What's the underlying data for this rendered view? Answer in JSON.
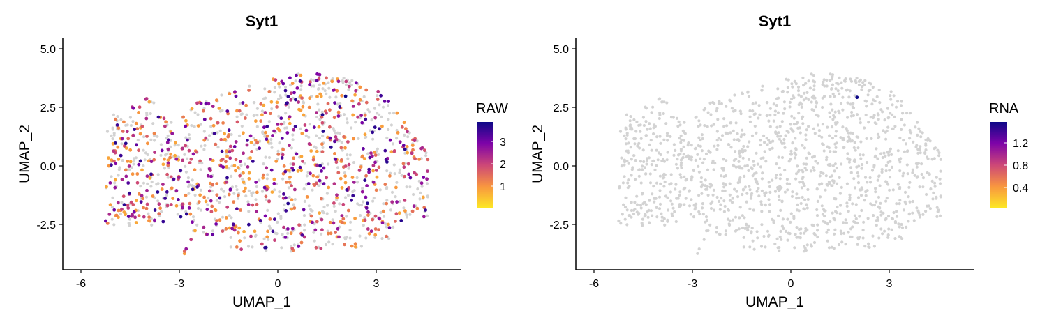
{
  "chart_data": [
    {
      "type": "scatter",
      "title": "Syt1",
      "xlabel": "UMAP_1",
      "ylabel": "UMAP_2",
      "xticks": [
        "-6",
        "-3",
        "0",
        "3"
      ],
      "yticks": [
        "-2.5",
        "0.0",
        "2.5",
        "5.0"
      ],
      "xlim": [
        -6.6,
        5.5
      ],
      "ylim": [
        -4.5,
        5.5
      ],
      "legend": {
        "title": "RAW",
        "position": "right",
        "range": [
          0.0,
          3.8
        ],
        "ticks": [
          "1",
          "2",
          "3"
        ],
        "colors": [
          "#fde725",
          "#f89540",
          "#cc4778",
          "#7e03a8",
          "#0d0887"
        ]
      },
      "grey_color": "#d3d3d3",
      "expressing_fraction": 0.55,
      "series": [
        {
          "values": [
            {
              "x": -5.0,
              "y": 2.0,
              "value": 1.2
            },
            {
              "x": -4.6,
              "y": -2.2,
              "value": 3.1
            },
            {
              "x": -4.2,
              "y": -1.3,
              "value": 2.4
            },
            {
              "x": 1.3,
              "y": 2.2,
              "value": 3.6
            },
            {
              "x": 2.0,
              "y": 3.0,
              "value": 3.8
            },
            {
              "x": 3.8,
              "y": -1.5,
              "value": 2.0
            },
            {
              "x": 0.5,
              "y": 3.9,
              "value": 3.0
            },
            {
              "x": -2.9,
              "y": -3.7,
              "value": 1.5
            }
          ]
        }
      ]
    },
    {
      "type": "scatter",
      "title": "Syt1",
      "xlabel": "UMAP_1",
      "ylabel": "UMAP_2",
      "xticks": [
        "-6",
        "-3",
        "0",
        "3"
      ],
      "yticks": [
        "-2.5",
        "0.0",
        "2.5",
        "5.0"
      ],
      "xlim": [
        -6.6,
        5.5
      ],
      "ylim": [
        -4.5,
        5.5
      ],
      "legend": {
        "title": "RNA",
        "position": "right",
        "range": [
          0.0,
          1.5
        ],
        "ticks": [
          "0.4",
          "0.8",
          "1.2"
        ],
        "colors": [
          "#fde725",
          "#f89540",
          "#cc4778",
          "#7e03a8",
          "#0d0887"
        ]
      },
      "grey_color": "#d3d3d3",
      "expressing_fraction": 0.0,
      "series": [
        {
          "values": [
            {
              "x": 1.95,
              "y": 2.95,
              "value": 1.5
            }
          ]
        }
      ]
    }
  ]
}
